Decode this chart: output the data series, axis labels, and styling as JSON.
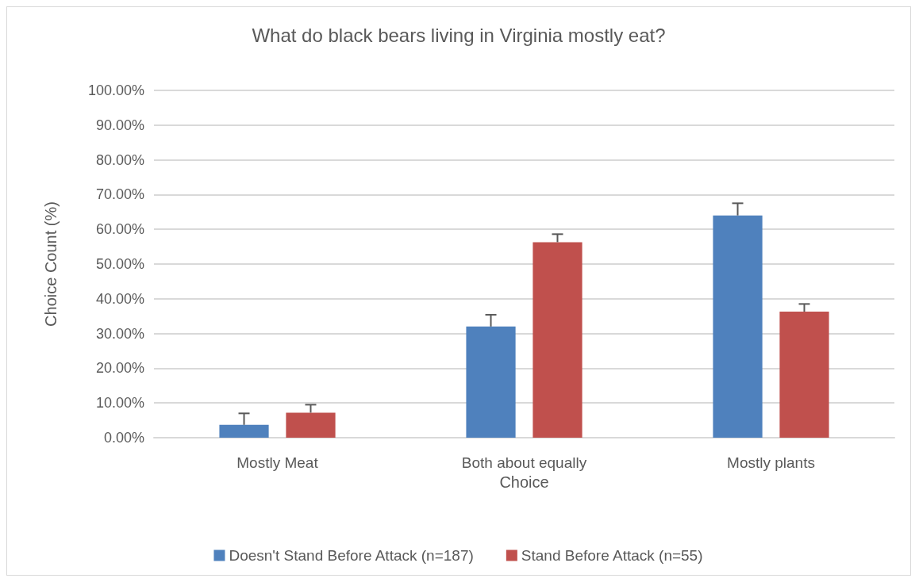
{
  "chart_data": {
    "type": "bar",
    "title": "What do black bears living in Virginia mostly eat?",
    "xlabel": "Choice",
    "ylabel": "Choice Count (%)",
    "categories": [
      "Mostly Meat",
      "Both about equally",
      "Mostly plants"
    ],
    "series": [
      {
        "name": "Doesn't Stand Before Attack (n=187)",
        "color": "#4f81bd",
        "values": [
          3.7,
          32.0,
          64.0
        ],
        "errors": [
          [
            3.7,
            7.0
          ],
          [
            32.0,
            35.4
          ],
          [
            64.0,
            67.5
          ]
        ]
      },
      {
        "name": "Stand Before Attack (n=55)",
        "color": "#c0504d",
        "values": [
          7.2,
          56.3,
          36.3
        ],
        "errors": [
          [
            7.2,
            9.5
          ],
          [
            56.3,
            58.6
          ],
          [
            36.3,
            38.5
          ]
        ]
      }
    ],
    "ylim": [
      0,
      100
    ],
    "yticks": [
      {
        "value": 0,
        "label": "0.00%"
      },
      {
        "value": 10,
        "label": "10.00%"
      },
      {
        "value": 20,
        "label": "20.00%"
      },
      {
        "value": 30,
        "label": "30.00%"
      },
      {
        "value": 40,
        "label": "40.00%"
      },
      {
        "value": 50,
        "label": "50.00%"
      },
      {
        "value": 60,
        "label": "60.00%"
      },
      {
        "value": 70,
        "label": "70.00%"
      },
      {
        "value": 80,
        "label": "80.00%"
      },
      {
        "value": 90,
        "label": "90.00%"
      },
      {
        "value": 100,
        "label": "100.00%"
      }
    ],
    "grid": "y",
    "legend": "bottom"
  }
}
